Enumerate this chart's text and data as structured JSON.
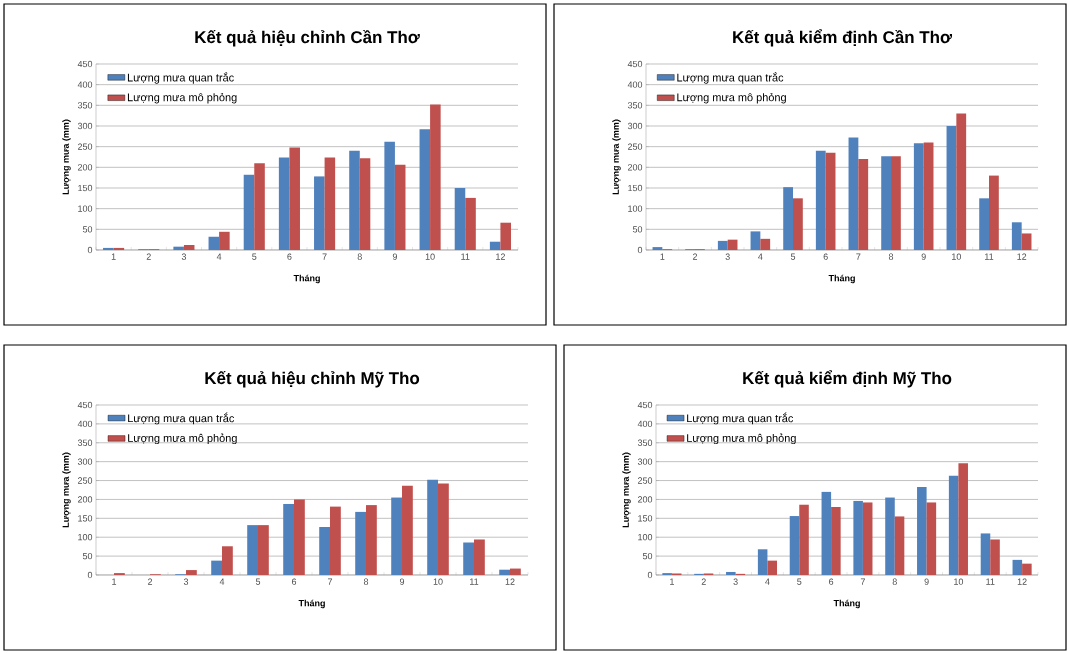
{
  "chart_data": [
    {
      "type": "bar",
      "title": "Kết quả hiệu chỉnh Cần Thơ",
      "xlabel": "Tháng",
      "ylabel": "Lượng mưa (mm)",
      "categories": [
        "1",
        "2",
        "3",
        "4",
        "5",
        "6",
        "7",
        "8",
        "9",
        "10",
        "11",
        "12"
      ],
      "ylim": [
        0,
        450
      ],
      "yticks": [
        0,
        50,
        100,
        150,
        200,
        250,
        300,
        350,
        400,
        450
      ],
      "grid": "y",
      "legend": "top left",
      "series": [
        {
          "name": "Lượng mưa quan trắc",
          "color": "#4f81bd",
          "values": [
            5,
            2,
            8,
            32,
            182,
            224,
            178,
            240,
            262,
            292,
            150,
            20
          ]
        },
        {
          "name": "Lượng mưa mô phỏng",
          "color": "#c0504d",
          "values": [
            5,
            2,
            12,
            44,
            210,
            248,
            224,
            222,
            206,
            352,
            126,
            66
          ]
        }
      ]
    },
    {
      "type": "bar",
      "title": "Kết quả kiểm định Cần Thơ",
      "xlabel": "Tháng",
      "ylabel": "Lượng mưa (mm)",
      "categories": [
        "1",
        "2",
        "3",
        "4",
        "5",
        "6",
        "7",
        "8",
        "9",
        "10",
        "11",
        "12"
      ],
      "ylim": [
        0,
        450
      ],
      "yticks": [
        0,
        50,
        100,
        150,
        200,
        250,
        300,
        350,
        400,
        450
      ],
      "grid": "y",
      "legend": "top left",
      "series": [
        {
          "name": "Lượng mưa quan trắc",
          "color": "#4f81bd",
          "values": [
            7,
            2,
            22,
            45,
            152,
            240,
            272,
            227,
            258,
            300,
            125,
            67
          ]
        },
        {
          "name": "Lượng mưa mô phỏng",
          "color": "#c0504d",
          "values": [
            2,
            2,
            25,
            27,
            125,
            235,
            220,
            227,
            260,
            330,
            180,
            40
          ]
        }
      ]
    },
    {
      "type": "bar",
      "title": "Kết quả hiệu chỉnh Mỹ Tho",
      "xlabel": "Tháng",
      "ylabel": "Lượng mưa (mm)",
      "categories": [
        "1",
        "2",
        "3",
        "4",
        "5",
        "6",
        "7",
        "8",
        "9",
        "10",
        "11",
        "12"
      ],
      "ylim": [
        0,
        450
      ],
      "yticks": [
        0,
        50,
        100,
        150,
        200,
        250,
        300,
        350,
        400,
        450
      ],
      "grid": "y",
      "legend": "top left",
      "series": [
        {
          "name": "Lượng mưa quan trắc",
          "color": "#4f81bd",
          "values": [
            0,
            0,
            2,
            38,
            132,
            188,
            127,
            167,
            205,
            252,
            86,
            14
          ]
        },
        {
          "name": "Lượng mưa mô phỏng",
          "color": "#c0504d",
          "values": [
            5,
            2,
            13,
            76,
            132,
            200,
            181,
            185,
            236,
            242,
            94,
            17
          ]
        }
      ]
    },
    {
      "type": "bar",
      "title": "Kết quả kiểm định Mỹ Tho",
      "xlabel": "Tháng",
      "ylabel": "Lượng mưa (mm)",
      "categories": [
        "1",
        "2",
        "3",
        "4",
        "5",
        "6",
        "7",
        "8",
        "9",
        "10",
        "11",
        "12"
      ],
      "ylim": [
        0,
        450
      ],
      "yticks": [
        0,
        50,
        100,
        150,
        200,
        250,
        300,
        350,
        400,
        450
      ],
      "grid": "y",
      "legend": "top left",
      "series": [
        {
          "name": "Lượng mưa quan trắc",
          "color": "#4f81bd",
          "values": [
            5,
            3,
            8,
            68,
            156,
            220,
            196,
            205,
            233,
            263,
            110,
            40
          ]
        },
        {
          "name": "Lượng mưa mô phỏng",
          "color": "#c0504d",
          "values": [
            4,
            4,
            3,
            38,
            186,
            180,
            192,
            155,
            192,
            296,
            94,
            30
          ]
        }
      ]
    }
  ]
}
